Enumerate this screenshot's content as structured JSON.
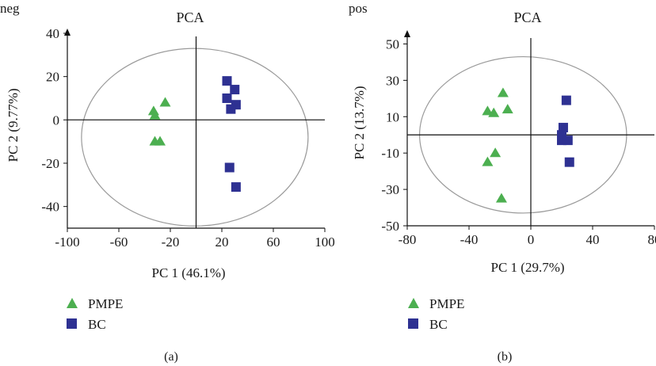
{
  "colors": {
    "pmpe": "#4caf50",
    "bc": "#2e3192",
    "ellipse": "#9a9a9a",
    "axis": "#111111"
  },
  "chart_data": [
    {
      "type": "scatter",
      "corner_label": "neg",
      "title": "PCA",
      "xlabel": "PC 1 (46.1%)",
      "ylabel": "PC 2 (9.77%)",
      "xlim": [
        -100,
        100
      ],
      "ylim": [
        -50,
        40
      ],
      "xticks": [
        "-100",
        "-60",
        "-20",
        "20",
        "60",
        "100"
      ],
      "yticks": [
        "40",
        "20",
        "0",
        "-20",
        "-40"
      ],
      "xtick_values": [
        -100,
        -60,
        -20,
        20,
        60,
        100
      ],
      "ytick_values": [
        40,
        20,
        0,
        -20,
        -40
      ],
      "ellipse": {
        "cx": -1,
        "cy": -8,
        "rx": 88,
        "ry": 41
      },
      "series": [
        {
          "name": "PMPE",
          "marker": "triangle",
          "points": [
            [
              -24,
              8
            ],
            [
              -33,
              4
            ],
            [
              -32,
              2
            ],
            [
              -32,
              -10
            ],
            [
              -28,
              -10
            ]
          ]
        },
        {
          "name": "BC",
          "marker": "square",
          "points": [
            [
              24,
              18
            ],
            [
              30,
              14
            ],
            [
              24,
              10
            ],
            [
              31,
              7
            ],
            [
              27,
              5
            ],
            [
              26,
              -22
            ],
            [
              31,
              -31
            ]
          ]
        }
      ],
      "legend": {
        "placement": "bottom-left",
        "items": [
          "PMPE",
          "BC"
        ]
      },
      "panel_label": "(a)"
    },
    {
      "type": "scatter",
      "corner_label": "pos",
      "title": "PCA",
      "xlabel": "PC 1 (29.7%)",
      "ylabel": "PC 2 (13.7%)",
      "xlim": [
        -80,
        80
      ],
      "ylim": [
        -50,
        55
      ],
      "xticks": [
        "-80",
        "-40",
        "0",
        "40",
        "80"
      ],
      "yticks": [
        "50",
        "30",
        "10",
        "-10",
        "-30",
        "-50"
      ],
      "xtick_values": [
        -80,
        -40,
        0,
        40,
        80
      ],
      "ytick_values": [
        50,
        30,
        10,
        -10,
        -30,
        -50
      ],
      "ellipse": {
        "cx": -5,
        "cy": 0,
        "rx": 67,
        "ry": 43
      },
      "series": [
        {
          "name": "PMPE",
          "marker": "triangle",
          "points": [
            [
              -18,
              23
            ],
            [
              -15,
              14
            ],
            [
              -28,
              13
            ],
            [
              -24,
              12
            ],
            [
              -23,
              -10
            ],
            [
              -28,
              -15
            ],
            [
              -19,
              -35
            ]
          ]
        },
        {
          "name": "BC",
          "marker": "square",
          "points": [
            [
              23,
              19
            ],
            [
              21,
              4
            ],
            [
              20,
              0
            ],
            [
              20,
              -3
            ],
            [
              24,
              -3
            ],
            [
              25,
              -15
            ]
          ]
        }
      ],
      "legend": {
        "placement": "bottom-left",
        "items": [
          "PMPE",
          "BC"
        ]
      },
      "panel_label": "(b)"
    }
  ]
}
